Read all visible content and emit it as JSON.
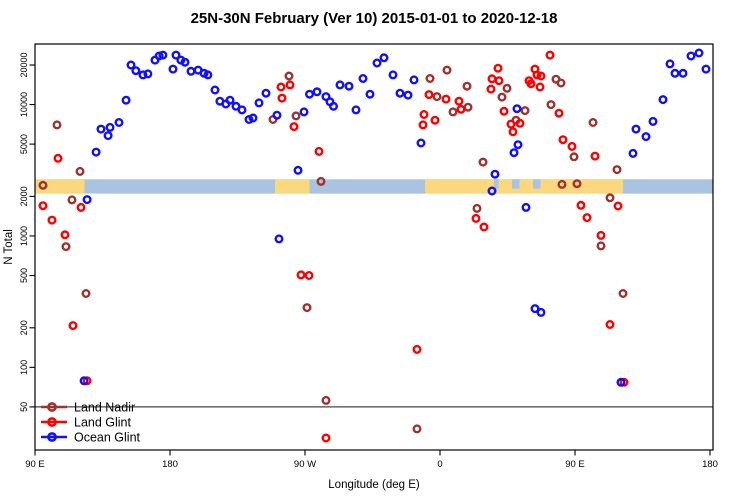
{
  "title": "25N-30N February (Ver 10)   2015-01-01 to 2020-12-18",
  "chart_data": {
    "type": "scatter",
    "title": "25N-30N February (Ver 10)   2015-01-01 to 2020-12-18",
    "x_axis": {
      "label": "Longitude (deg E)",
      "note": "longitude axis spans 450 deg starting at 90E, wrapping through 180, 90W, 0, 90E to 180",
      "ticks": [
        {
          "deg": 0,
          "label": "90 E"
        },
        {
          "deg": 90,
          "label": "180"
        },
        {
          "deg": 180,
          "label": "90 W"
        },
        {
          "deg": 270,
          "label": "0"
        },
        {
          "deg": 360,
          "label": "90 E"
        },
        {
          "deg": 450,
          "label": "180"
        }
      ]
    },
    "y_axis": {
      "label": "N Total",
      "scale": "log",
      "ticks": [
        20000,
        10000,
        5000,
        2000,
        1000,
        500,
        200,
        100,
        50
      ]
    },
    "reference_line": {
      "y": 50,
      "color": "#444444"
    },
    "map_strip": {
      "description": "world-map band of the 25N-30N latitude zone drawn across the plot near N=2100-2700",
      "n_top": 2700,
      "n_bottom": 2100,
      "ocean_color": "#A9C3E0",
      "land_color": "#FBD87E",
      "land_segments_deg": [
        [
          0,
          33
        ],
        [
          160,
          183
        ],
        [
          260,
          392
        ]
      ],
      "ocean_notches_deg": [
        [
          306,
          309
        ],
        [
          318,
          323
        ],
        [
          332,
          337
        ]
      ]
    },
    "legend": {
      "position": "bottom-left",
      "entries": [
        "Land Nadir",
        "Land Glint",
        "Ocean Glint"
      ]
    },
    "series": [
      {
        "name": "Land Nadir",
        "color": "#9E322F",
        "points": [
          [
            14.7,
            7000
          ],
          [
            30,
            3100
          ],
          [
            5.3,
            2430
          ],
          [
            24.7,
            1880
          ],
          [
            20.7,
            830
          ],
          [
            34,
            365
          ],
          [
            169.3,
            16500
          ],
          [
            158.7,
            7700
          ],
          [
            174,
            8200
          ],
          [
            190.7,
            2600
          ],
          [
            181.3,
            285
          ],
          [
            194,
            56
          ],
          [
            254.7,
            34
          ],
          [
            263.3,
            15800
          ],
          [
            274.7,
            18300
          ],
          [
            268,
            11500
          ],
          [
            288,
            13800
          ],
          [
            288.7,
            9550
          ],
          [
            278.7,
            8800
          ],
          [
            314.7,
            13300
          ],
          [
            311.3,
            11400
          ],
          [
            320.7,
            7600
          ],
          [
            347.3,
            15600
          ],
          [
            350.7,
            14600
          ],
          [
            326.7,
            9000
          ],
          [
            344,
            10000
          ],
          [
            372,
            7300
          ],
          [
            359.3,
            4000
          ],
          [
            388,
            3200
          ],
          [
            351.3,
            2470
          ],
          [
            361.3,
            2500
          ],
          [
            383.3,
            1950
          ],
          [
            377.3,
            840
          ],
          [
            298.7,
            3650
          ],
          [
            294.7,
            1620
          ],
          [
            392,
            365
          ]
        ]
      },
      {
        "name": "Land Glint",
        "color": "#FF0000",
        "points": [
          [
            15.3,
            3900
          ],
          [
            5.3,
            1700
          ],
          [
            30.7,
            1650
          ],
          [
            11.3,
            1320
          ],
          [
            20,
            1020
          ],
          [
            25.3,
            208
          ],
          [
            34.7,
            79
          ],
          [
            170,
            14100
          ],
          [
            164,
            13600
          ],
          [
            164.7,
            11200
          ],
          [
            172.7,
            6800
          ],
          [
            189.3,
            4400
          ],
          [
            177.3,
            505
          ],
          [
            182.7,
            500
          ],
          [
            194,
            29
          ],
          [
            254.7,
            137
          ],
          [
            262.7,
            11900
          ],
          [
            274,
            11000
          ],
          [
            282.7,
            10600
          ],
          [
            284,
            9200
          ],
          [
            259.3,
            8400
          ],
          [
            266.7,
            7600
          ],
          [
            258.7,
            7000
          ],
          [
            308.7,
            18900
          ],
          [
            304.7,
            15700
          ],
          [
            309.3,
            15200
          ],
          [
            304,
            13100
          ],
          [
            312.7,
            8900
          ],
          [
            317.3,
            7100
          ],
          [
            318.7,
            6200
          ],
          [
            343.3,
            23800
          ],
          [
            333.3,
            18600
          ],
          [
            334.7,
            16800
          ],
          [
            337.3,
            16500
          ],
          [
            329.3,
            15200
          ],
          [
            330.7,
            14400
          ],
          [
            336.7,
            13600
          ],
          [
            349.3,
            8600
          ],
          [
            323.3,
            7200
          ],
          [
            352,
            5400
          ],
          [
            358,
            4800
          ],
          [
            373.3,
            4050
          ],
          [
            364,
            1710
          ],
          [
            368,
            1380
          ],
          [
            377.3,
            1010
          ],
          [
            388.7,
            1690
          ],
          [
            294,
            1360
          ],
          [
            299.3,
            1170
          ],
          [
            383.3,
            212
          ],
          [
            392.7,
            77
          ]
        ]
      },
      {
        "name": "Ocean Glint",
        "color": "#1010FF",
        "points": [
          [
            64,
            20000
          ],
          [
            67.3,
            18100
          ],
          [
            72,
            16800
          ],
          [
            75.3,
            17100
          ],
          [
            80,
            21800
          ],
          [
            82.7,
            23400
          ],
          [
            85.3,
            23800
          ],
          [
            92,
            18600
          ],
          [
            94,
            23800
          ],
          [
            97.3,
            21800
          ],
          [
            100,
            21000
          ],
          [
            104,
            17900
          ],
          [
            108.7,
            18300
          ],
          [
            112.7,
            17300
          ],
          [
            115.3,
            16800
          ],
          [
            120,
            12900
          ],
          [
            123.3,
            10600
          ],
          [
            127.3,
            10100
          ],
          [
            130,
            10800
          ],
          [
            134,
            9700
          ],
          [
            138,
            9100
          ],
          [
            142.7,
            7700
          ],
          [
            145.3,
            7900
          ],
          [
            60.7,
            10800
          ],
          [
            50,
            6700
          ],
          [
            56,
            7300
          ],
          [
            44,
            6500
          ],
          [
            48.7,
            5800
          ],
          [
            40.7,
            4350
          ],
          [
            34.7,
            1890
          ],
          [
            32.7,
            79
          ],
          [
            154,
            12200
          ],
          [
            149.3,
            10300
          ],
          [
            161.3,
            8300
          ],
          [
            179.3,
            8800
          ],
          [
            183,
            12000
          ],
          [
            188,
            12500
          ],
          [
            194,
            11500
          ],
          [
            196.7,
            10500
          ],
          [
            199,
            9700
          ],
          [
            203.3,
            14100
          ],
          [
            209.3,
            13800
          ],
          [
            214,
            9100
          ],
          [
            218.7,
            15800
          ],
          [
            223.3,
            12000
          ],
          [
            228,
            20700
          ],
          [
            232.7,
            22700
          ],
          [
            238.7,
            16800
          ],
          [
            243.3,
            12200
          ],
          [
            248.7,
            11800
          ],
          [
            252.7,
            15400
          ],
          [
            257.3,
            5100
          ],
          [
            175.3,
            3160
          ],
          [
            162.7,
            950
          ],
          [
            306.7,
            2950
          ],
          [
            304.7,
            2200
          ],
          [
            327.3,
            1650
          ],
          [
            321.3,
            9300
          ],
          [
            322,
            4950
          ],
          [
            319.3,
            4300
          ],
          [
            400.7,
            6500
          ],
          [
            407.3,
            5700
          ],
          [
            412,
            7450
          ],
          [
            418.7,
            10900
          ],
          [
            398.7,
            4250
          ],
          [
            423.3,
            20400
          ],
          [
            426.7,
            17300
          ],
          [
            432,
            17300
          ],
          [
            437.3,
            23400
          ],
          [
            442.7,
            24700
          ],
          [
            447.3,
            18600
          ],
          [
            333.3,
            280
          ],
          [
            337.3,
            262
          ],
          [
            390.7,
            77
          ]
        ]
      }
    ]
  }
}
